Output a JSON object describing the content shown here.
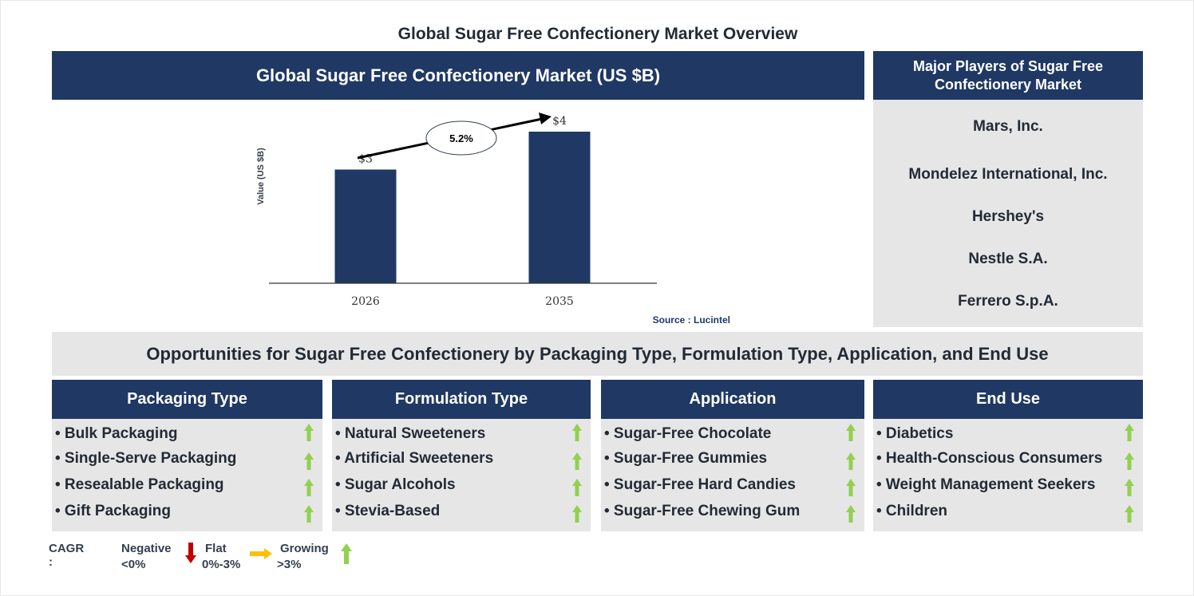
{
  "title": "Global Sugar Free Confectionery Market Overview",
  "market_header": "Global Sugar Free Confectionery Market (US $B)",
  "chart_data": {
    "type": "bar",
    "title": "Global Sugar Free Confectionery Market (US $B)",
    "categories": [
      "2026",
      "2035"
    ],
    "values": [
      3,
      4
    ],
    "data_labels": [
      "$3",
      "$4"
    ],
    "ylabel": "Value (US $B)",
    "xlabel": "",
    "ylim": [
      0,
      4.2
    ],
    "grid": false,
    "bar_color": "#1f3864",
    "cagr_annotation": "5.2%",
    "source": "Source : Lucintel"
  },
  "players": {
    "header": "Major Players of Sugar Free Confectionery Market",
    "items": [
      "Mars, Inc.",
      "Mondelez International, Inc.",
      "Hershey's",
      "Nestle S.A.",
      "Ferrero S.p.A."
    ]
  },
  "opportunities_title": "Opportunities for Sugar Free Confectionery by Packaging Type, Formulation Type, Application, and End Use",
  "segments": [
    {
      "header": "Packaging Type",
      "items": [
        {
          "label": "• Bulk Packaging",
          "trend": "growing"
        },
        {
          "label": "• Single-Serve Packaging",
          "trend": "growing"
        },
        {
          "label": "• Resealable Packaging",
          "trend": "growing"
        },
        {
          "label": "• Gift Packaging",
          "trend": "growing"
        }
      ]
    },
    {
      "header": "Formulation Type",
      "items": [
        {
          "label": "• Natural Sweeteners",
          "trend": "growing"
        },
        {
          "label": "• Artificial Sweeteners",
          "trend": "growing"
        },
        {
          "label": "• Sugar Alcohols",
          "trend": "growing"
        },
        {
          "label": "• Stevia-Based",
          "trend": "growing"
        }
      ]
    },
    {
      "header": "Application",
      "items": [
        {
          "label": "• Sugar-Free Chocolate",
          "trend": "growing"
        },
        {
          "label": "• Sugar-Free Gummies",
          "trend": "growing"
        },
        {
          "label": "• Sugar-Free Hard Candies",
          "trend": "growing"
        },
        {
          "label": "• Sugar-Free Chewing Gum",
          "trend": "growing"
        }
      ]
    },
    {
      "header": "End Use",
      "items": [
        {
          "label": "• Diabetics",
          "trend": "growing"
        },
        {
          "label": "• Health-Conscious Consumers",
          "trend": "growing"
        },
        {
          "label": "• Weight Management Seekers",
          "trend": "growing"
        },
        {
          "label": "• Children",
          "trend": "growing"
        }
      ]
    }
  ],
  "legend": {
    "label": "CAGR :",
    "negative": {
      "name": "Negative",
      "range": "<0%",
      "color": "#c00000"
    },
    "flat": {
      "name": "Flat",
      "range": "0%-3%",
      "color": "#ffc000"
    },
    "growing": {
      "name": "Growing",
      "range": ">3%",
      "color": "#92d050"
    }
  }
}
